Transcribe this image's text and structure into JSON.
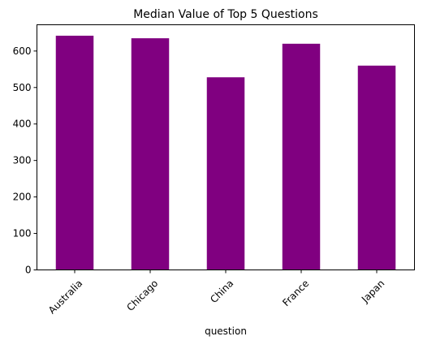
{
  "chart_data": {
    "type": "bar",
    "title": "Median Value of Top 5 Questions",
    "xlabel": "question",
    "ylabel": "",
    "categories": [
      "Australia",
      "Chicago",
      "China",
      "France",
      "Japan"
    ],
    "values": [
      642,
      635,
      528,
      620,
      560
    ],
    "ylim": [
      0,
      672
    ],
    "yticks": [
      0,
      100,
      200,
      300,
      400,
      500,
      600
    ],
    "bar_color": "#800080",
    "grid": false,
    "legend": "none"
  }
}
